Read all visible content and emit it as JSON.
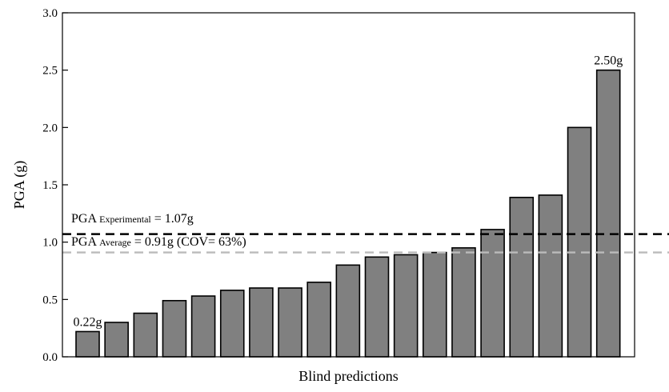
{
  "chart_data": {
    "type": "bar",
    "xlabel": "Blind predictions",
    "ylabel": "PGA (g)",
    "ylim": [
      0,
      3.0
    ],
    "yticks": [
      "0.0",
      "0.5",
      "1.0",
      "1.5",
      "2.0",
      "2.5",
      "3.0"
    ],
    "grid": false,
    "values": [
      0.22,
      0.3,
      0.38,
      0.49,
      0.53,
      0.58,
      0.6,
      0.6,
      0.65,
      0.8,
      0.87,
      0.89,
      0.91,
      0.95,
      1.11,
      1.39,
      1.41,
      2.0,
      2.5
    ],
    "bar_color": "#808080",
    "data_labels": [
      {
        "index": 0,
        "text": "0.22g"
      },
      {
        "index": 18,
        "text": "2.50g"
      }
    ],
    "reference_lines": [
      {
        "value": 1.07,
        "style": "dashed",
        "color": "#000000",
        "label_main": "PGA",
        "label_sub": "Experimental",
        "label_rest": "= 1.07g"
      },
      {
        "value": 0.91,
        "style": "dashed",
        "color": "#bbbbbb",
        "label_main": "PGA",
        "label_sub": "Average",
        "label_rest": "= 0.91g (COV= 63%)"
      }
    ]
  }
}
